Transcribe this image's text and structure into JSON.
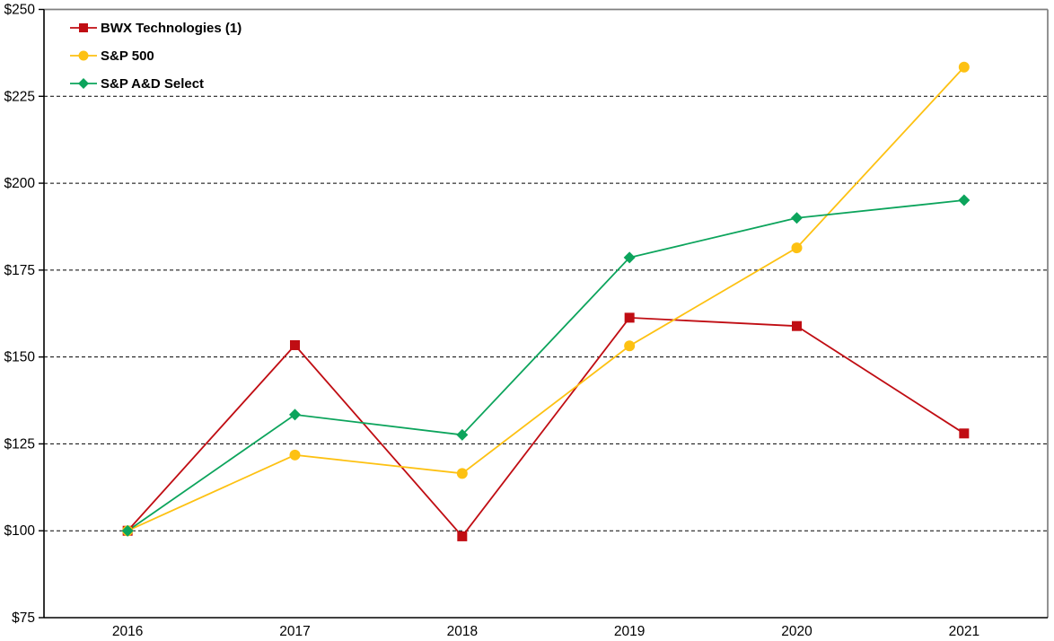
{
  "chart_data": {
    "type": "line",
    "title": "",
    "categories": [
      "2016",
      "2017",
      "2018",
      "2019",
      "2020",
      "2021"
    ],
    "series": [
      {
        "name": "BWX Technologies (1)",
        "color": "#C00D13",
        "marker": "square",
        "values": [
          100,
          153.4,
          98.4,
          161.3,
          158.9,
          128.0
        ]
      },
      {
        "name": "S&P 500",
        "color": "#FDC112",
        "marker": "circle",
        "values": [
          100,
          121.8,
          116.5,
          153.2,
          181.4,
          233.4
        ]
      },
      {
        "name": "S&P A&D Select",
        "color": "#0CA45C",
        "marker": "diamond",
        "values": [
          100,
          133.4,
          127.6,
          178.6,
          190.0,
          195.1
        ]
      }
    ],
    "ylim": [
      75,
      250
    ],
    "ytick_step": 25,
    "ytick_labels": [
      "$250",
      "$225",
      "$200",
      "$175",
      "$150",
      "$125",
      "$100",
      "$75"
    ],
    "xlabel": "",
    "ylabel": "",
    "grid": "horizontal-dashed",
    "legend_position": "top-left"
  },
  "colors": {
    "axis": "#000000",
    "gridline": "#000000",
    "border_top_right": "#7F7F7F",
    "background": "#FFFFFF",
    "tick_text": "#000000"
  }
}
